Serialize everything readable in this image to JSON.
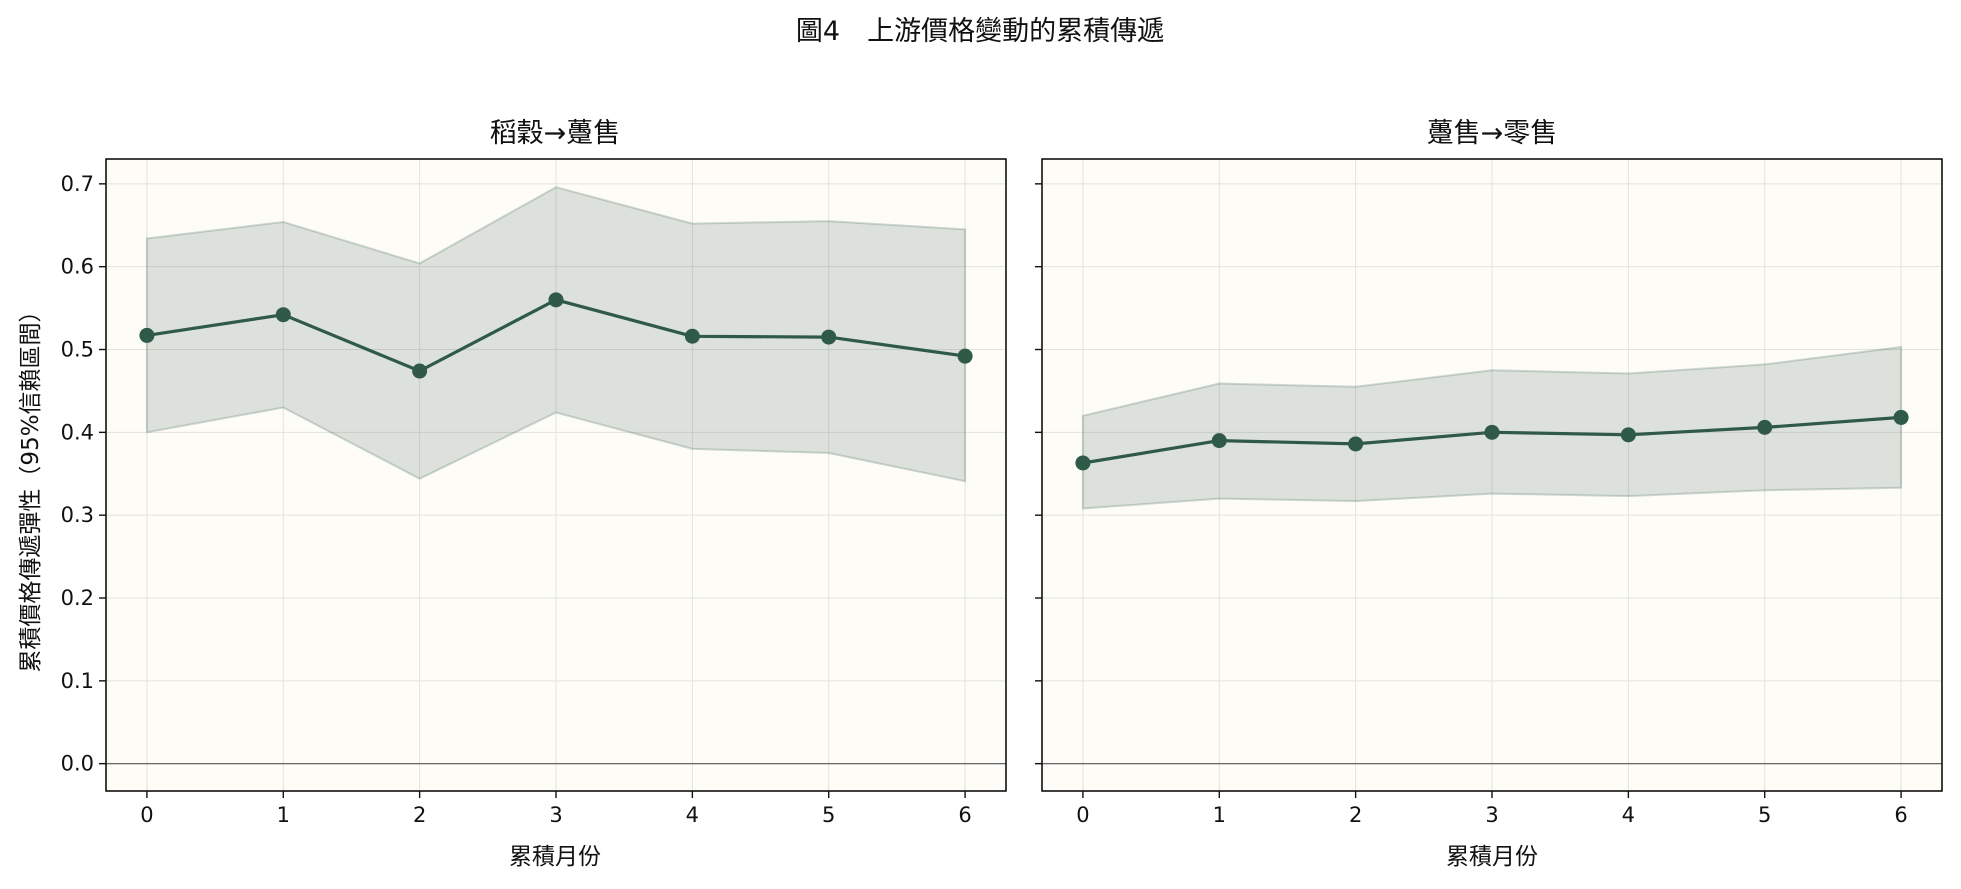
{
  "title": "圖4　上游價格變動的累積傳遞",
  "colors": {
    "line": "#2f5a48",
    "band": "#2f5a48",
    "panel_bg": "#fdfcf7",
    "grid": "#e3e3dc",
    "zero_line": "#555555"
  },
  "chart_data": [
    {
      "type": "line",
      "title": "稻穀→躉售",
      "xlabel": "累積月份",
      "ylabel": "累積價格傳遞彈性（95%信賴區間）",
      "x": [
        0,
        1,
        2,
        3,
        4,
        5,
        6
      ],
      "values": [
        0.517,
        0.542,
        0.474,
        0.56,
        0.516,
        0.515,
        0.492
      ],
      "ci_lower": [
        0.4,
        0.43,
        0.344,
        0.424,
        0.38,
        0.375,
        0.341
      ],
      "ci_upper": [
        0.634,
        0.654,
        0.604,
        0.696,
        0.652,
        0.655,
        0.645
      ],
      "xlim": [
        -0.3,
        6.3
      ],
      "ylim": [
        -0.033,
        0.73
      ],
      "yticks": [
        "0.0",
        "0.1",
        "0.2",
        "0.3",
        "0.4",
        "0.5",
        "0.6",
        "0.7"
      ],
      "xticks": [
        "0",
        "1",
        "2",
        "3",
        "4",
        "5",
        "6"
      ],
      "grid": true
    },
    {
      "type": "line",
      "title": "躉售→零售",
      "xlabel": "累積月份",
      "ylabel": "",
      "x": [
        0,
        1,
        2,
        3,
        4,
        5,
        6
      ],
      "values": [
        0.363,
        0.39,
        0.386,
        0.4,
        0.397,
        0.406,
        0.418
      ],
      "ci_lower": [
        0.308,
        0.32,
        0.317,
        0.326,
        0.323,
        0.33,
        0.333
      ],
      "ci_upper": [
        0.42,
        0.459,
        0.455,
        0.475,
        0.471,
        0.482,
        0.503
      ],
      "xlim": [
        -0.3,
        6.3
      ],
      "ylim": [
        -0.033,
        0.73
      ],
      "yticks": [
        "0.0",
        "0.1",
        "0.2",
        "0.3",
        "0.4",
        "0.5",
        "0.6",
        "0.7"
      ],
      "xticks": [
        "0",
        "1",
        "2",
        "3",
        "4",
        "5",
        "6"
      ],
      "grid": true
    }
  ]
}
